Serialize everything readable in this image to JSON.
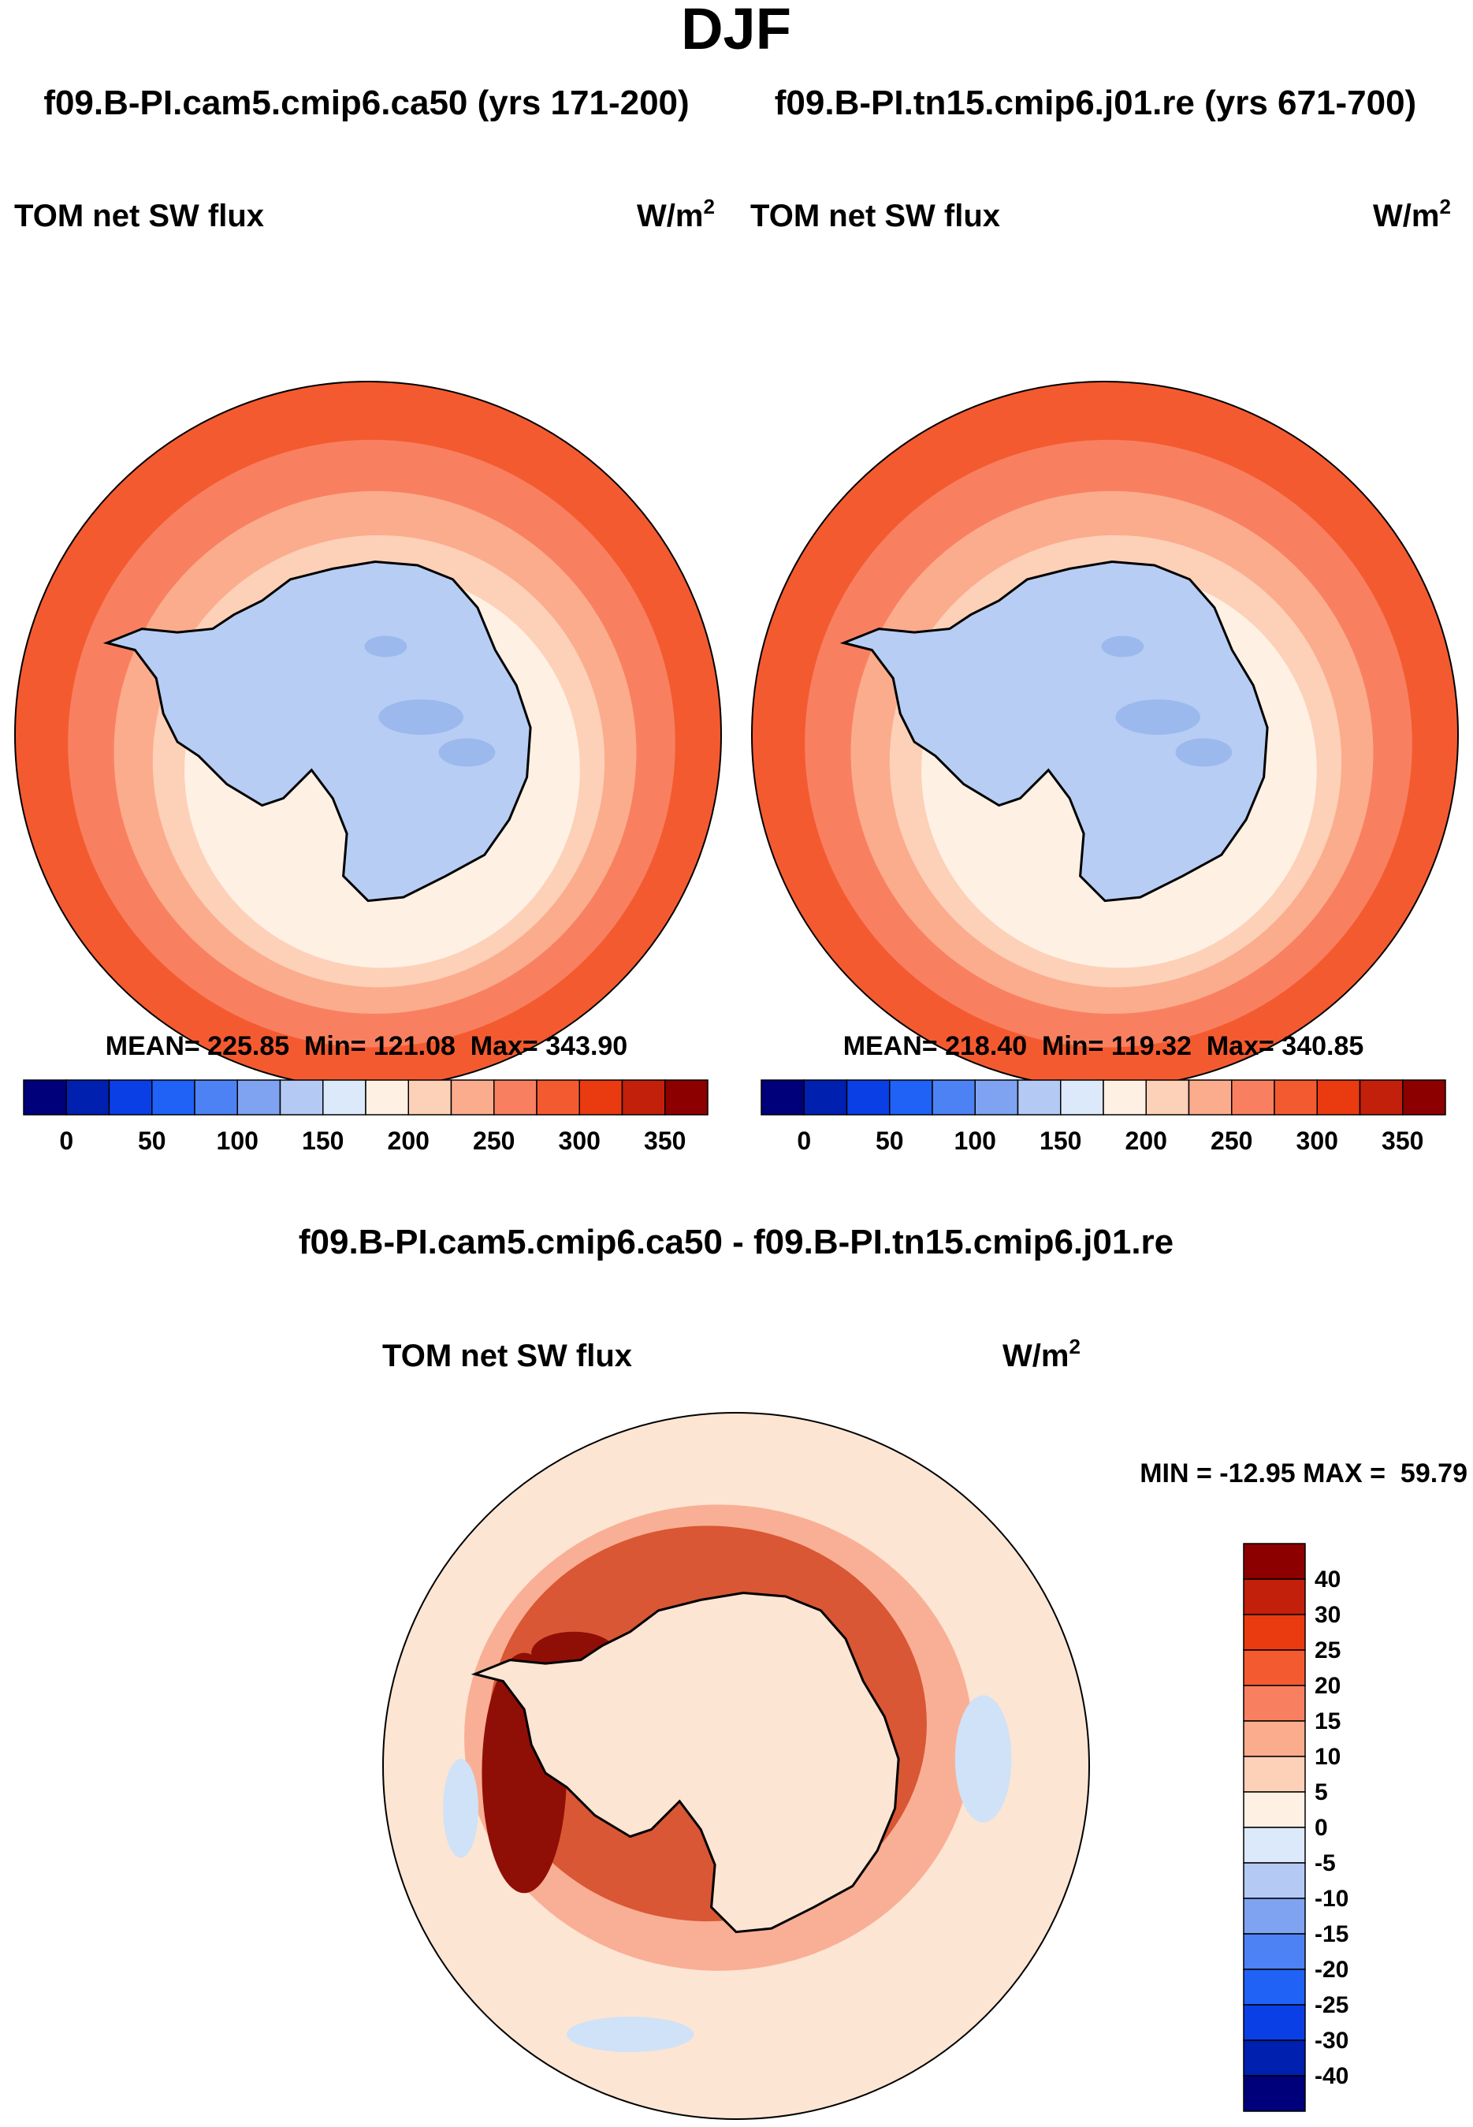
{
  "title": "DJF",
  "colors": {
    "ocean_far": "#f4511e",
    "ice_fill": "#b7cdf3",
    "ice_dark": "#8fb0ea",
    "coast": "#000000",
    "diff_base": "#fde5d3",
    "diff_mid": "#f8a68a",
    "diff_high": "#d1411b",
    "diff_max": "#8f0f06",
    "diff_neg": "#cfe2f7"
  },
  "chart_data": [
    {
      "type": "heatmap",
      "subtitle": "f09.B-PI.cam5.cmip6.ca50 (yrs 171-200)",
      "variable": "TOM net SW flux",
      "units": "W/m",
      "units_exp": "2",
      "stats": "MEAN= 225.85  Min= 121.08  Max= 343.90",
      "mean": 225.85,
      "min": 121.08,
      "max": 343.9,
      "levels": [
        0,
        25,
        50,
        75,
        100,
        125,
        150,
        175,
        200,
        225,
        250,
        275,
        300,
        325,
        350
      ],
      "tick_labels": [
        "0",
        "50",
        "100",
        "150",
        "200",
        "250",
        "300",
        "350"
      ],
      "colors": [
        "#00007a",
        "#0020b0",
        "#0a3fe6",
        "#1f62f5",
        "#4c82f4",
        "#7fa3f0",
        "#b4caf4",
        "#dbe9fb",
        "#fff0e4",
        "#fdd0b8",
        "#fbac8d",
        "#f88060",
        "#f45a30",
        "#ea3a10",
        "#c2200a",
        "#8c0000"
      ]
    },
    {
      "type": "heatmap",
      "subtitle": "f09.B-PI.tn15.cmip6.j01.re (yrs 671-700)",
      "variable": "TOM net SW flux",
      "units": "W/m",
      "units_exp": "2",
      "stats": "MEAN= 218.40  Min= 119.32  Max= 340.85",
      "mean": 218.4,
      "min": 119.32,
      "max": 340.85,
      "levels": [
        0,
        25,
        50,
        75,
        100,
        125,
        150,
        175,
        200,
        225,
        250,
        275,
        300,
        325,
        350
      ],
      "tick_labels": [
        "0",
        "50",
        "100",
        "150",
        "200",
        "250",
        "300",
        "350"
      ],
      "colors": [
        "#00007a",
        "#0020b0",
        "#0a3fe6",
        "#1f62f5",
        "#4c82f4",
        "#7fa3f0",
        "#b4caf4",
        "#dbe9fb",
        "#fff0e4",
        "#fdd0b8",
        "#fbac8d",
        "#f88060",
        "#f45a30",
        "#ea3a10",
        "#c2200a",
        "#8c0000"
      ]
    },
    {
      "type": "heatmap",
      "subtitle": "f09.B-PI.cam5.cmip6.ca50 - f09.B-PI.tn15.cmip6.j01.re",
      "variable": "TOM net SW flux",
      "units": "W/m",
      "units_exp": "2",
      "stats": "MIN = -12.95 MAX =  59.79",
      "min": -12.95,
      "max": 59.79,
      "levels": [
        40,
        30,
        25,
        20,
        15,
        10,
        5,
        0,
        -5,
        -10,
        -15,
        -20,
        -25,
        -30,
        -40
      ],
      "tick_labels": [
        "40",
        "30",
        "25",
        "20",
        "15",
        "10",
        "5",
        "0",
        "-5",
        "-10",
        "-15",
        "-20",
        "-25",
        "-30",
        "-40"
      ],
      "colors": [
        "#8c0000",
        "#c2200a",
        "#ea3a10",
        "#f45a30",
        "#f88060",
        "#fbac8d",
        "#fdd0b8",
        "#fff0e4",
        "#dbe9fb",
        "#b4caf4",
        "#7fa3f0",
        "#4c82f4",
        "#1f62f5",
        "#0a3fe6",
        "#0020b0",
        "#00007a"
      ]
    }
  ]
}
